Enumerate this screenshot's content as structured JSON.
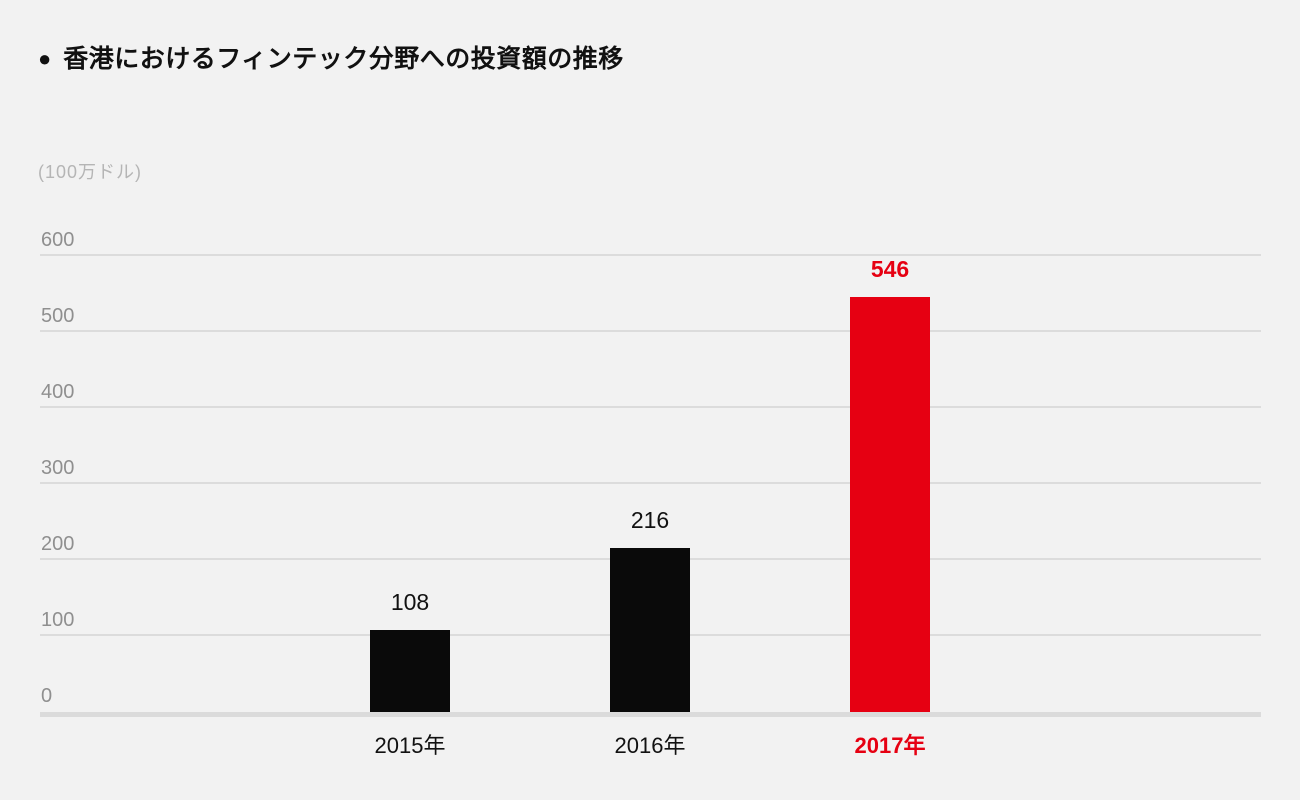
{
  "header": {
    "bullet_icon": "●"
  },
  "chart_data": {
    "type": "bar",
    "title": "香港におけるフィンテック分野への投資額の推移",
    "unit_label": "(100万ドル)",
    "categories": [
      "2015年",
      "2016年",
      "2017年"
    ],
    "values": [
      108,
      216,
      546
    ],
    "yticks": [
      0,
      100,
      200,
      300,
      400,
      500,
      600
    ],
    "ylim": [
      0,
      600
    ],
    "grid": true,
    "legend": false,
    "bar_colors": [
      "#0a0a0a",
      "#0a0a0a",
      "#e60012"
    ],
    "value_label_colors": [
      "#111111",
      "#111111",
      "#e60012"
    ],
    "value_label_bold": [
      false,
      false,
      true
    ],
    "category_label_colors": [
      "#111111",
      "#111111",
      "#e60012"
    ],
    "category_label_bold": [
      false,
      false,
      true
    ]
  },
  "colors": {
    "background": "#f2f2f2",
    "title_text": "#111111",
    "unit_text": "#b5b5b5",
    "tick_text": "#8f8f8f",
    "gridline": "#dcdcdc",
    "axis_line": "#dbdbdb"
  }
}
